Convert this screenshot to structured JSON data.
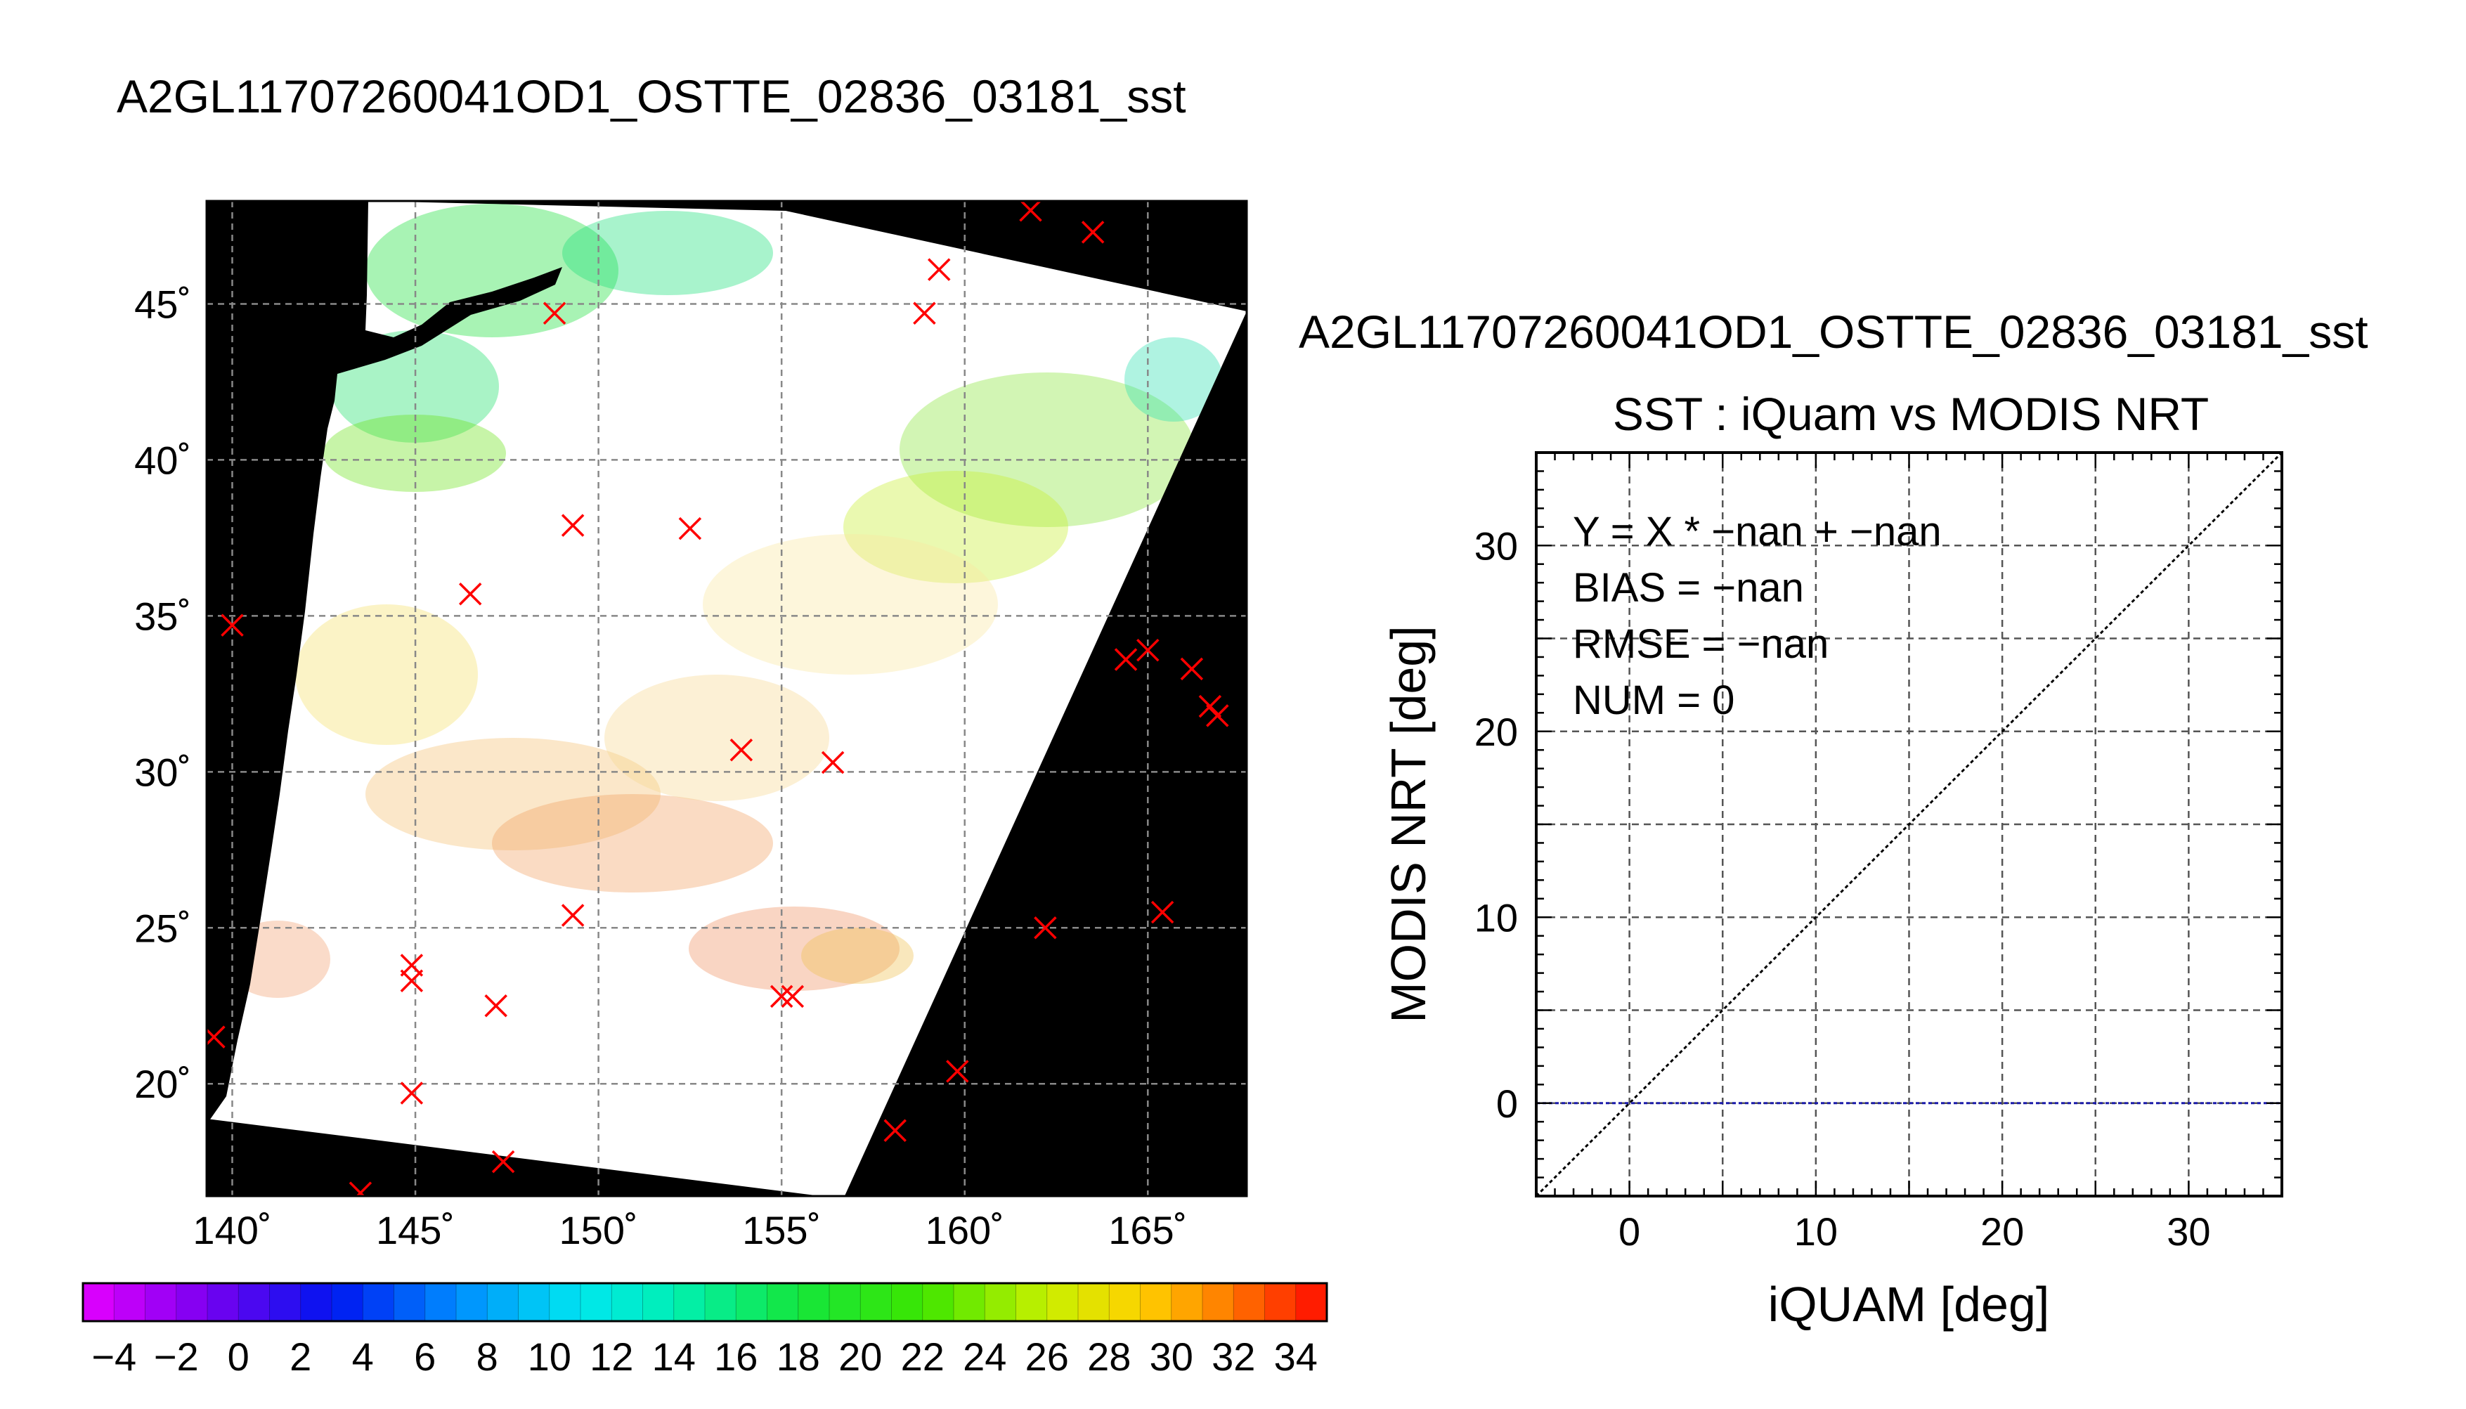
{
  "chart_data": [
    {
      "type": "map",
      "title": "A2GL11707260041OD1_OSTTE_02836_03181_sst",
      "lon_range": [
        139.3,
        167.7
      ],
      "lat_range": [
        16.4,
        48.3
      ],
      "lon_ticks": [
        140,
        145,
        150,
        155,
        160,
        165
      ],
      "lat_ticks": [
        20,
        25,
        30,
        35,
        40,
        45
      ],
      "lon_tick_labels": [
        "140˚",
        "145˚",
        "150˚",
        "155˚",
        "160˚",
        "165˚"
      ],
      "lat_tick_labels": [
        "20˚",
        "25˚",
        "30˚",
        "35˚",
        "40˚",
        "45˚"
      ],
      "grid": true,
      "colorbar": {
        "min": -5,
        "max": 35,
        "step": 1,
        "tick_labels": [
          "−4",
          "−2",
          "0",
          "2",
          "4",
          "6",
          "8",
          "10",
          "12",
          "14",
          "16",
          "18",
          "20",
          "22",
          "24",
          "26",
          "28",
          "30",
          "32",
          "34"
        ],
        "tick_values": [
          -4,
          -2,
          0,
          2,
          4,
          6,
          8,
          10,
          12,
          14,
          16,
          18,
          20,
          22,
          24,
          26,
          28,
          30,
          32,
          34
        ]
      },
      "marker_color": "#ff0000",
      "markers": [
        {
          "lon": 161.8,
          "lat": 48.0
        },
        {
          "lon": 163.5,
          "lat": 47.3
        },
        {
          "lon": 159.3,
          "lat": 46.1
        },
        {
          "lon": 158.9,
          "lat": 44.7
        },
        {
          "lon": 148.8,
          "lat": 44.7
        },
        {
          "lon": 149.3,
          "lat": 37.9
        },
        {
          "lon": 152.5,
          "lat": 37.8
        },
        {
          "lon": 146.5,
          "lat": 35.7
        },
        {
          "lon": 140.0,
          "lat": 34.7
        },
        {
          "lon": 164.4,
          "lat": 33.6
        },
        {
          "lon": 165.0,
          "lat": 33.9
        },
        {
          "lon": 166.2,
          "lat": 33.3
        },
        {
          "lon": 166.7,
          "lat": 32.1
        },
        {
          "lon": 166.9,
          "lat": 31.8
        },
        {
          "lon": 153.9,
          "lat": 30.7
        },
        {
          "lon": 156.4,
          "lat": 30.3
        },
        {
          "lon": 149.3,
          "lat": 25.4
        },
        {
          "lon": 165.4,
          "lat": 25.5
        },
        {
          "lon": 162.2,
          "lat": 25.0
        },
        {
          "lon": 144.9,
          "lat": 23.8
        },
        {
          "lon": 144.9,
          "lat": 23.3
        },
        {
          "lon": 147.2,
          "lat": 22.5
        },
        {
          "lon": 155.0,
          "lat": 22.8
        },
        {
          "lon": 155.3,
          "lat": 22.8
        },
        {
          "lon": 139.5,
          "lat": 21.5
        },
        {
          "lon": 159.8,
          "lat": 20.4
        },
        {
          "lon": 144.9,
          "lat": 19.7
        },
        {
          "lon": 158.1,
          "lat": 18.5
        },
        {
          "lon": 147.4,
          "lat": 17.5
        },
        {
          "lon": 143.5,
          "lat": 16.5
        }
      ]
    },
    {
      "type": "scatter",
      "title": "A2GL11707260041OD1_OSTTE_02836_03181_sst",
      "subtitle": "SST : iQuam vs MODIS NRT",
      "xlabel": "iQUAM [deg]",
      "ylabel": "MODIS NRT [deg]",
      "xlim": [
        -5,
        35
      ],
      "ylim": [
        -5,
        35
      ],
      "xticks": [
        0,
        10,
        20,
        30
      ],
      "yticks": [
        0,
        10,
        20,
        30
      ],
      "xtick_labels": [
        "0",
        "10",
        "20",
        "30"
      ],
      "ytick_labels": [
        "0",
        "10",
        "20",
        "30"
      ],
      "grid": true,
      "grid_step": 5,
      "points": [],
      "reference_lines": [
        {
          "kind": "identity",
          "color": "#000000"
        },
        {
          "kind": "horizontal",
          "y": 0,
          "color": "#1a1aaa"
        }
      ],
      "annotations": [
        "Y = X * −nan + −nan",
        "BIAS = −nan",
        "RMSE = −nan",
        "NUM = 0"
      ]
    }
  ]
}
